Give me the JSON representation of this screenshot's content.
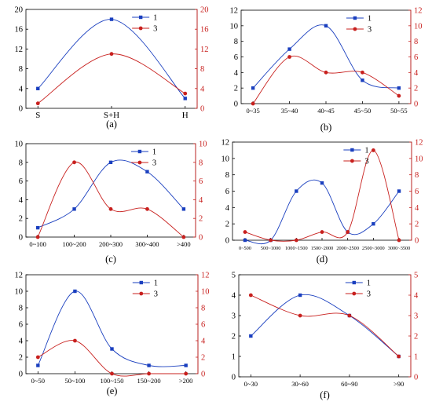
{
  "colors": {
    "series1": "#1a3fbf",
    "series3": "#c8201e",
    "axis_left": "#000000",
    "axis_right": "#c8201e"
  },
  "chart_data": [
    {
      "type": "line",
      "subplot_label": "(a)",
      "categories": [
        "S",
        "S+H",
        "H"
      ],
      "series": [
        {
          "name": "1",
          "axis": "left",
          "values": [
            4,
            18,
            2
          ]
        },
        {
          "name": "3",
          "axis": "right",
          "values": [
            1,
            11,
            3
          ]
        }
      ],
      "ylim_left": [
        0,
        20
      ],
      "yticks_left": [
        "0",
        "4",
        "8",
        "12",
        "16",
        "20"
      ],
      "ylim_right": [
        0,
        20
      ],
      "yticks_right": [
        "0",
        "4",
        "8",
        "12",
        "16",
        "20"
      ],
      "legend": "top-right",
      "grid": false
    },
    {
      "type": "line",
      "subplot_label": "(b)",
      "categories": [
        "0~35",
        "35~40",
        "40~45",
        "45~50",
        "50~55"
      ],
      "series": [
        {
          "name": "1",
          "axis": "left",
          "values": [
            2,
            7,
            10,
            3,
            2
          ]
        },
        {
          "name": "3",
          "axis": "right",
          "values": [
            0,
            6,
            4,
            4,
            1
          ]
        }
      ],
      "ylim_left": [
        0,
        12
      ],
      "yticks_left": [
        "0",
        "2",
        "4",
        "6",
        "8",
        "10",
        "12"
      ],
      "ylim_right": [
        0,
        12
      ],
      "yticks_right": [
        "0",
        "2",
        "4",
        "6",
        "8",
        "10",
        "12"
      ],
      "legend": "top-right",
      "grid": false
    },
    {
      "type": "line",
      "subplot_label": "(c)",
      "categories": [
        "0~100",
        "100~200",
        "200~300",
        "300~400",
        ">400"
      ],
      "series": [
        {
          "name": "1",
          "axis": "left",
          "values": [
            1,
            3,
            8,
            7,
            3
          ]
        },
        {
          "name": "3",
          "axis": "right",
          "values": [
            0,
            8,
            3,
            3,
            0
          ]
        }
      ],
      "ylim_left": [
        0,
        10
      ],
      "yticks_left": [
        "0",
        "2",
        "4",
        "6",
        "8",
        "10"
      ],
      "ylim_right": [
        0,
        10
      ],
      "yticks_right": [
        "0",
        "2",
        "4",
        "6",
        "8",
        "10"
      ],
      "legend": "top-right",
      "grid": false
    },
    {
      "type": "line",
      "subplot_label": "(d)",
      "categories": [
        "0~500",
        "500~1000",
        "1000~1500",
        "1500~2000",
        "2000~2500",
        "2500~3000",
        "3000~3500"
      ],
      "series": [
        {
          "name": "1",
          "axis": "left",
          "values": [
            0,
            0,
            6,
            7,
            1,
            2,
            6
          ]
        },
        {
          "name": "3",
          "axis": "right",
          "values": [
            1,
            0,
            0,
            1,
            1,
            11,
            0
          ]
        }
      ],
      "ylim_left": [
        0,
        12
      ],
      "yticks_left": [
        "0",
        "2",
        "4",
        "6",
        "8",
        "10",
        "12"
      ],
      "ylim_right": [
        0,
        12
      ],
      "yticks_right": [
        "0",
        "2",
        "4",
        "6",
        "8",
        "10",
        "12"
      ],
      "legend": "top-right",
      "grid": false
    },
    {
      "type": "line",
      "subplot_label": "(e)",
      "categories": [
        "0~50",
        "50~100",
        "100~150",
        "150~200",
        ">200"
      ],
      "series": [
        {
          "name": "1",
          "axis": "left",
          "values": [
            1,
            10,
            3,
            1,
            1
          ]
        },
        {
          "name": "3",
          "axis": "right",
          "values": [
            2,
            4,
            0,
            0,
            0
          ]
        }
      ],
      "ylim_left": [
        0,
        12
      ],
      "yticks_left": [
        "0",
        "2",
        "4",
        "6",
        "8",
        "10",
        "12"
      ],
      "ylim_right": [
        0,
        12
      ],
      "yticks_right": [
        "0",
        "2",
        "4",
        "6",
        "8",
        "10",
        "12"
      ],
      "legend": "top-right",
      "grid": false
    },
    {
      "type": "line",
      "subplot_label": "(f)",
      "categories": [
        "0~30",
        "30~60",
        "60~90",
        ">90"
      ],
      "series": [
        {
          "name": "1",
          "axis": "left",
          "values": [
            2,
            4,
            3,
            1
          ]
        },
        {
          "name": "3",
          "axis": "right",
          "values": [
            4,
            3,
            3,
            1
          ]
        }
      ],
      "ylim_left": [
        0,
        5
      ],
      "yticks_left": [
        "0",
        "1",
        "2",
        "3",
        "4",
        "5"
      ],
      "ylim_right": [
        0,
        5
      ],
      "yticks_right": [
        "0",
        "1",
        "2",
        "3",
        "4",
        "5"
      ],
      "legend": "top-right",
      "grid": false
    }
  ]
}
